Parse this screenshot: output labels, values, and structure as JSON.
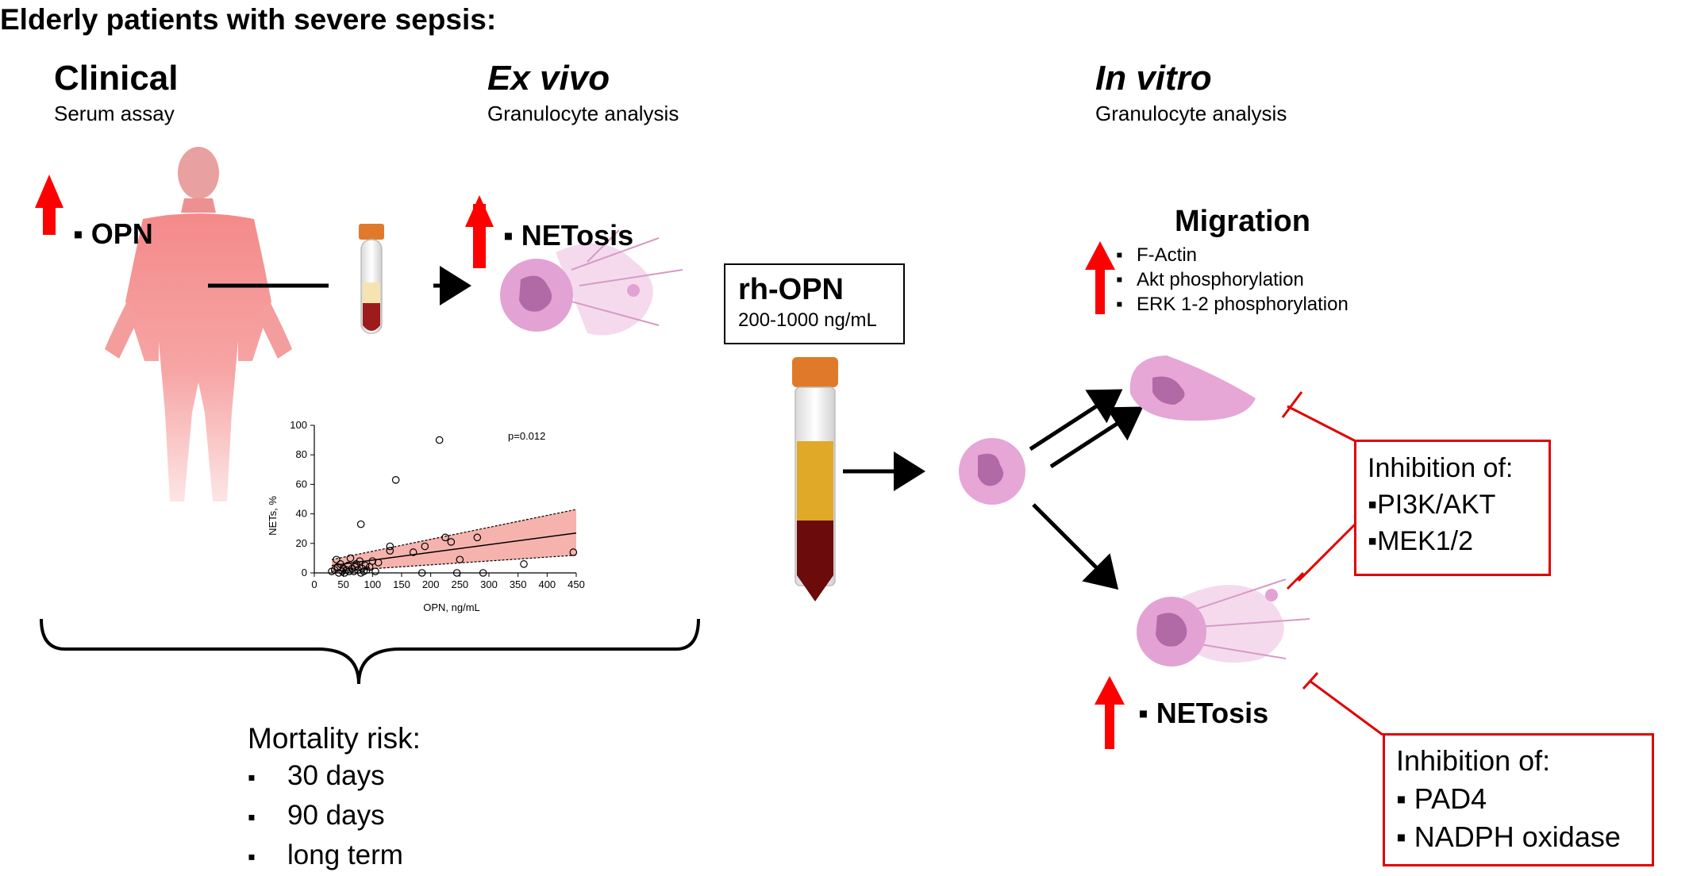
{
  "title": "Elderly patients with severe sepsis:",
  "sections": {
    "clinical": {
      "title": "Clinical",
      "subtitle": "Serum assay"
    },
    "ex_vivo": {
      "title": "Ex vivo",
      "subtitle": "Granulocyte analysis"
    },
    "in_vitro": {
      "title": "In vitro",
      "subtitle": "Granulocyte analysis"
    }
  },
  "markers": {
    "opn": "OPN",
    "netosis_ex_vivo": "NETosis",
    "netosis_in_vitro": "NETosis"
  },
  "migration": {
    "title": "Migration",
    "items": [
      "F-Actin",
      "Akt phosphorylation",
      "ERK 1-2 phosphorylation"
    ]
  },
  "rh_opn": {
    "name": "rh-OPN",
    "concentration": "200-1000 ng/mL"
  },
  "inhibition_1": {
    "title": "Inhibition of:",
    "items": [
      "PI3K/AKT",
      "MEK1/2"
    ]
  },
  "inhibition_2": {
    "title": "Inhibition of:",
    "items": [
      "PAD4",
      "NADPH oxidase"
    ]
  },
  "mortality": {
    "title": "Mortality risk:",
    "items": [
      "30 days",
      "90 days",
      "long term"
    ]
  },
  "colors": {
    "arrow_up": "#ff0000",
    "inhibition": "#e10000",
    "ci_band": "#f4a6a0",
    "cell": "#e6a6d6"
  },
  "icons": [
    "human-body-icon",
    "blood-tube-icon",
    "falcon-tube-icon",
    "neutrophil-icon",
    "net-releasing-cell-icon",
    "migrating-cell-icon"
  ],
  "chart_data": {
    "type": "scatter",
    "annotation": "p=0.012",
    "xlabel": "OPN, ng/mL",
    "ylabel": "NETs, %",
    "xlim": [
      0,
      450
    ],
    "ylim": [
      0,
      100
    ],
    "x_ticks": [
      "0",
      "50",
      "100",
      "150",
      "200",
      "250",
      "300",
      "350",
      "400",
      "450"
    ],
    "y_ticks": [
      "0",
      "20",
      "40",
      "60",
      "80",
      "100"
    ],
    "points": [
      [
        30,
        1
      ],
      [
        35,
        2
      ],
      [
        38,
        9
      ],
      [
        40,
        4
      ],
      [
        42,
        0
      ],
      [
        45,
        6
      ],
      [
        48,
        1
      ],
      [
        50,
        3
      ],
      [
        52,
        0
      ],
      [
        55,
        2
      ],
      [
        58,
        5
      ],
      [
        60,
        1
      ],
      [
        62,
        10
      ],
      [
        65,
        3
      ],
      [
        68,
        1
      ],
      [
        70,
        4
      ],
      [
        72,
        6
      ],
      [
        75,
        2
      ],
      [
        78,
        8
      ],
      [
        80,
        0
      ],
      [
        82,
        3
      ],
      [
        85,
        1
      ],
      [
        88,
        5
      ],
      [
        90,
        2
      ],
      [
        95,
        4
      ],
      [
        100,
        8
      ],
      [
        105,
        1
      ],
      [
        110,
        7
      ],
      [
        80,
        33
      ],
      [
        130,
        18
      ],
      [
        130,
        15
      ],
      [
        140,
        63
      ],
      [
        170,
        14
      ],
      [
        185,
        0
      ],
      [
        190,
        18
      ],
      [
        215,
        90
      ],
      [
        225,
        24
      ],
      [
        235,
        21
      ],
      [
        245,
        0
      ],
      [
        250,
        9
      ],
      [
        280,
        24
      ],
      [
        290,
        0
      ],
      [
        360,
        6
      ],
      [
        445,
        14
      ]
    ],
    "trend": {
      "x": [
        30,
        450
      ],
      "y": [
        5,
        27
      ]
    },
    "ci_upper": {
      "x": [
        30,
        450
      ],
      "y": [
        9,
        43
      ]
    },
    "ci_lower": {
      "x": [
        30,
        450
      ],
      "y": [
        1,
        12
      ]
    }
  }
}
